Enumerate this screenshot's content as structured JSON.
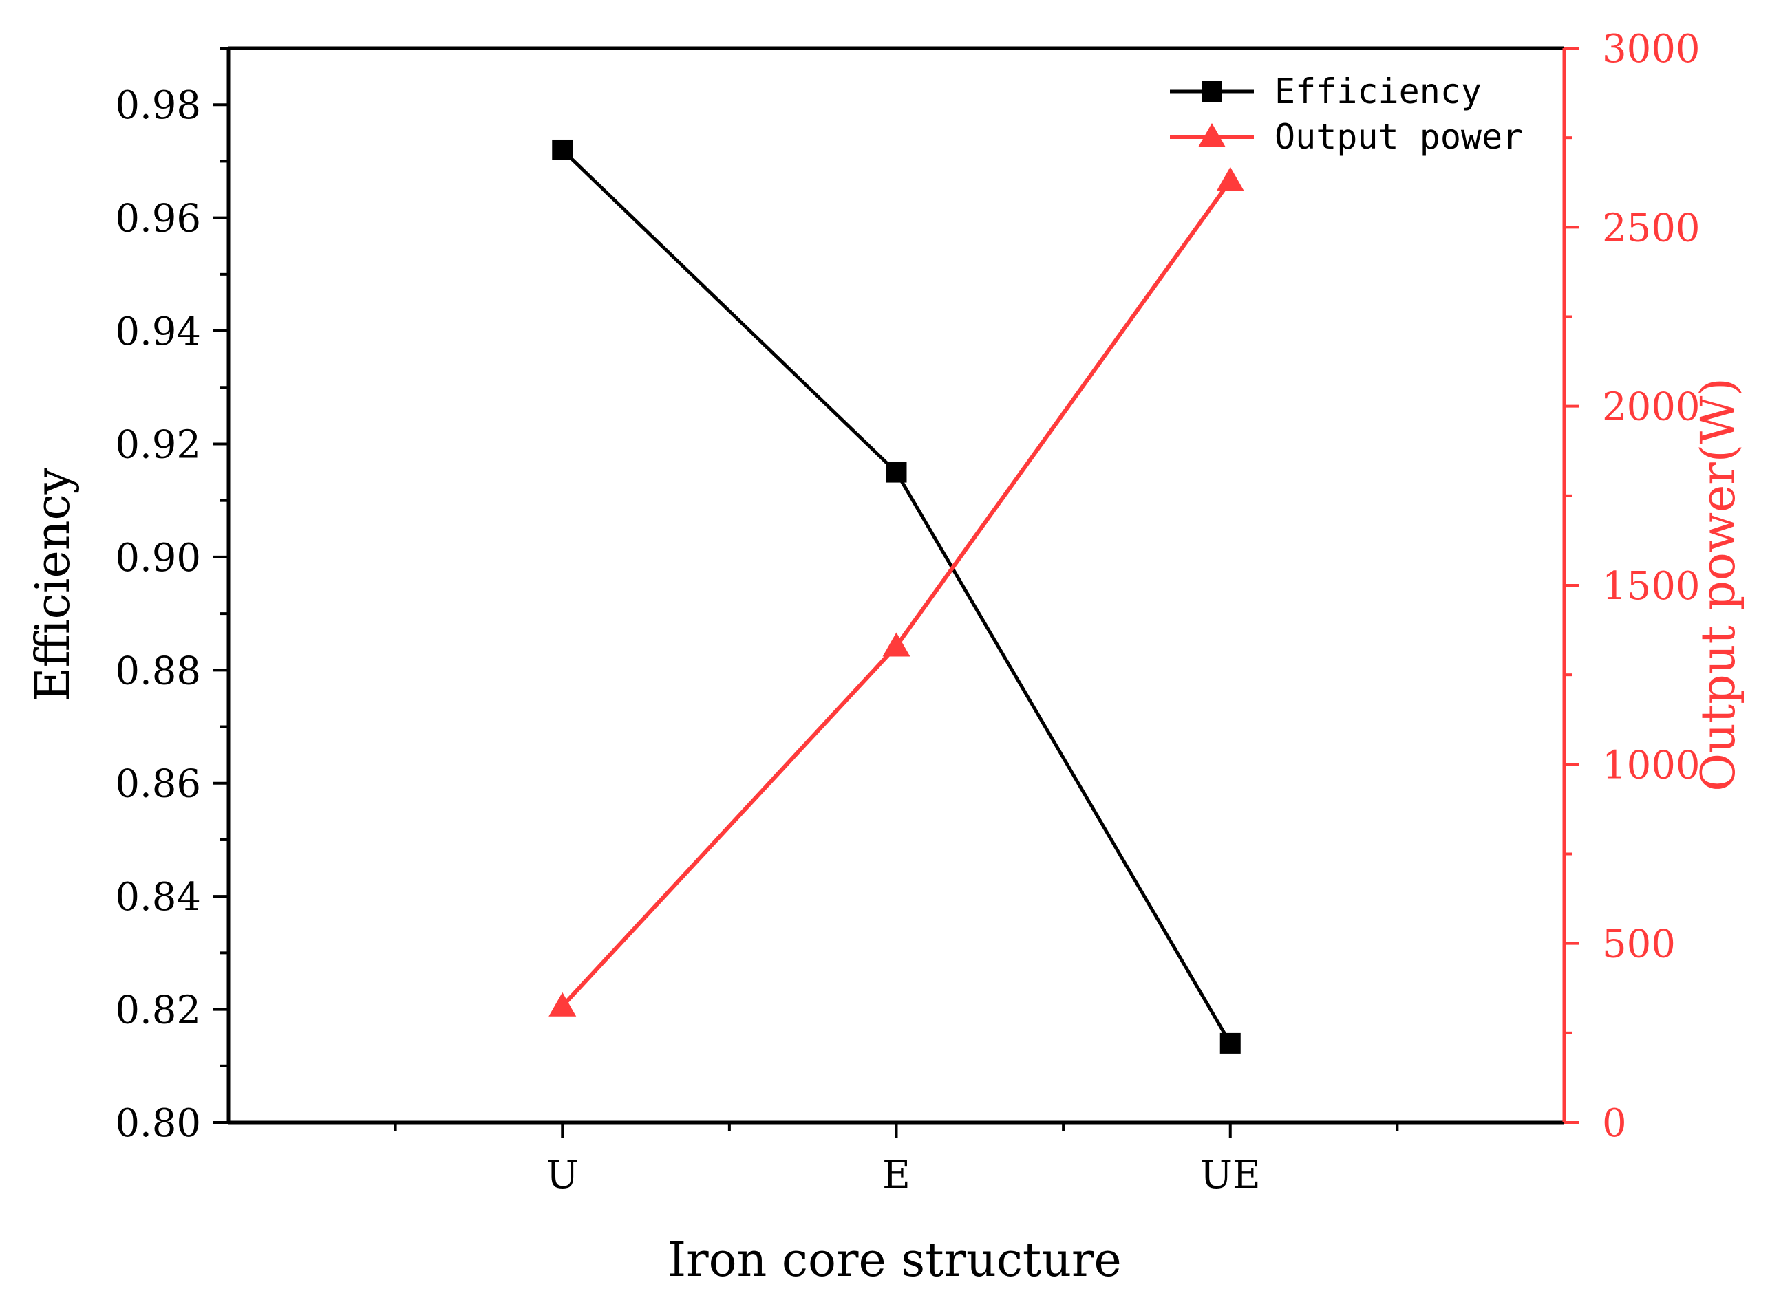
{
  "chart_data": {
    "type": "line",
    "categories": [
      "U",
      "E",
      "UE"
    ],
    "xlabel": "Iron core structure",
    "ylabel": "Efficiency",
    "ylabel_right": "Output power(W)",
    "ylim": [
      0.8,
      0.99
    ],
    "ylim_right": [
      0,
      3000
    ],
    "yticks": [
      "0.80",
      "0.82",
      "0.84",
      "0.86",
      "0.88",
      "0.90",
      "0.92",
      "0.94",
      "0.96",
      "0.98"
    ],
    "yticks_right": [
      "0",
      "500",
      "1000",
      "1500",
      "2000",
      "2500",
      "3000"
    ],
    "grid": false,
    "legend_position": "top-right",
    "series": [
      {
        "name": "Efficiency",
        "axis": "left",
        "marker": "square",
        "color": "#000000",
        "values": [
          0.972,
          0.915,
          0.814
        ]
      },
      {
        "name": "Output power",
        "axis": "right",
        "marker": "triangle",
        "color": "#ff3b3b",
        "values": [
          325,
          1330,
          2630
        ]
      }
    ]
  }
}
